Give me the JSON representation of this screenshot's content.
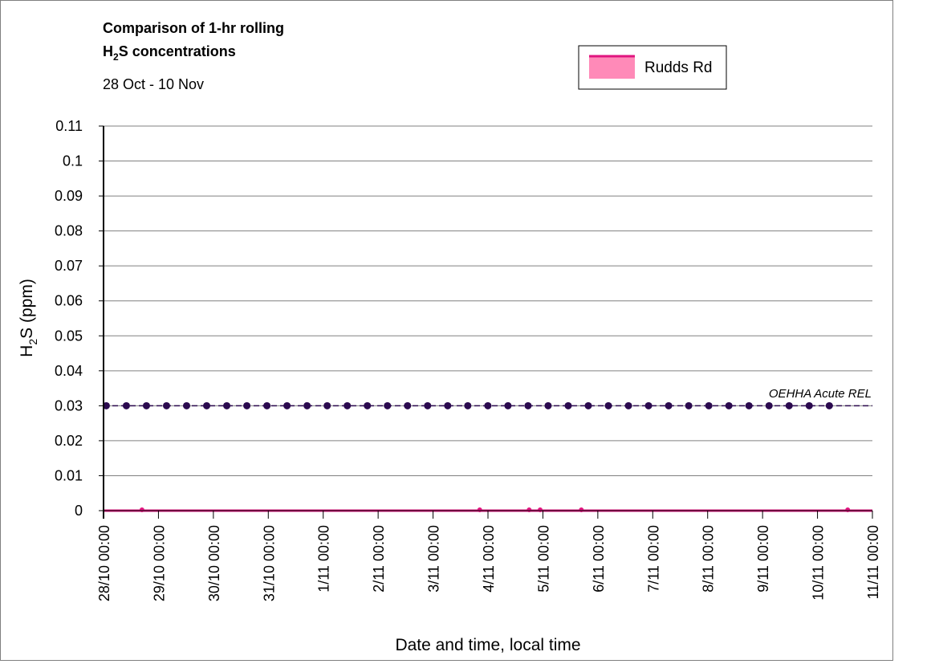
{
  "colors": {
    "rudds": "#e0157f",
    "rudds_fill": "#ff8ab8",
    "rel": "#2b0a4f",
    "grid": "#808080",
    "axis": "#000000"
  },
  "chart_data": {
    "type": "line",
    "title_line1": "Comparison of 1-hr rolling",
    "title_line2_main": "H",
    "title_line2_sub": "2",
    "title_line2_rest": "S concentrations",
    "subtitle": "28 Oct - 10 Nov",
    "xlabel": "Date and time, local time",
    "ylabel_main": "H",
    "ylabel_sub": "2",
    "ylabel_rest": "S (ppm)",
    "ylim": [
      0,
      0.11
    ],
    "y_ticks": [
      "0",
      "0.01",
      "0.02",
      "0.03",
      "0.04",
      "0.05",
      "0.06",
      "0.07",
      "0.08",
      "0.09",
      "0.1",
      "0.11"
    ],
    "x_ticks": [
      "28/10 00:00",
      "29/10 00:00",
      "30/10 00:00",
      "31/10 00:00",
      "1/11 00:00",
      "2/11 00:00",
      "3/11 00:00",
      "4/11 00:00",
      "5/11 00:00",
      "6/11 00:00",
      "7/11 00:00",
      "8/11 00:00",
      "9/11 00:00",
      "10/11 00:00",
      "11/11 00:00"
    ],
    "xlim_days": [
      0,
      14
    ],
    "grid": true,
    "legend_position": "top-right",
    "series": [
      {
        "name": "Rudds Rd",
        "style": "area",
        "value": 0,
        "spikes_days": [
          0.7,
          6.85,
          7.75,
          7.95,
          8.7,
          13.55
        ],
        "spike_value": 0.0003
      },
      {
        "style": "dashed-line-markers",
        "value": 0.03,
        "marker_start_day": 0.05,
        "marker_step_day": 0.3657,
        "marker_count": 37
      }
    ],
    "annotations": [
      {
        "text": "OEHHA Acute REL",
        "y": 0.03
      }
    ]
  }
}
